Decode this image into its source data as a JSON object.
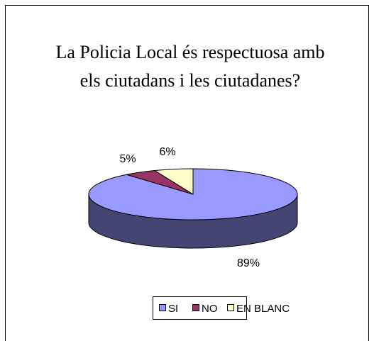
{
  "chart_data": {
    "type": "pie3d",
    "title": [
      "La Policia Local és respectuosa amb",
      "els ciutadans i les ciutadanes?"
    ],
    "categories": [
      "SI",
      "NO",
      "EN BLANC"
    ],
    "values": [
      89,
      5,
      6
    ],
    "value_labels": [
      "89%",
      "5%",
      "6%"
    ],
    "colors": [
      "#9999ff",
      "#993366",
      "#ffffcc"
    ],
    "legend": "bottom"
  }
}
